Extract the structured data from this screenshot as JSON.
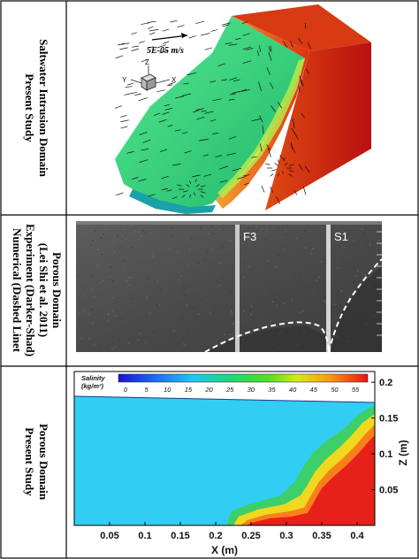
{
  "panels": {
    "top": {
      "label_lines": [
        "Saltwater Intrusion Domain",
        "Present Study"
      ],
      "velocity_scale": "5E-05 m/s",
      "axes": {
        "z": "Z",
        "y": "Y",
        "x": "X"
      }
    },
    "middle": {
      "label_lines": [
        "Porous Domain",
        "(Lei Shi et al. 2011)",
        "Experiment (Darker-Shad)",
        "Numerical (Dashed Linet"
      ],
      "markers": [
        "F3",
        "S1"
      ]
    },
    "bottom": {
      "label_lines": [
        "Porous Domain",
        "Present Study"
      ],
      "colorbar": {
        "title_line1": "Salinity",
        "title_line2": "(kg/m³)",
        "ticks": [
          "0",
          "5",
          "10",
          "15",
          "20",
          "25",
          "30",
          "35",
          "40",
          "45",
          "50",
          "55"
        ]
      },
      "x_ticks": [
        "0.05",
        "0.1",
        "0.15",
        "0.2",
        "0.25",
        "0.3",
        "0.35",
        "0.4"
      ],
      "z_ticks": [
        "0.2",
        "0.15",
        "0.1",
        "0.05"
      ],
      "xlabel": "X (m)",
      "zlabel": "Z (m)"
    }
  },
  "colors": {
    "fresh": "#32cdf2",
    "saline": "#e8201a",
    "mid": "#2fd06a"
  }
}
